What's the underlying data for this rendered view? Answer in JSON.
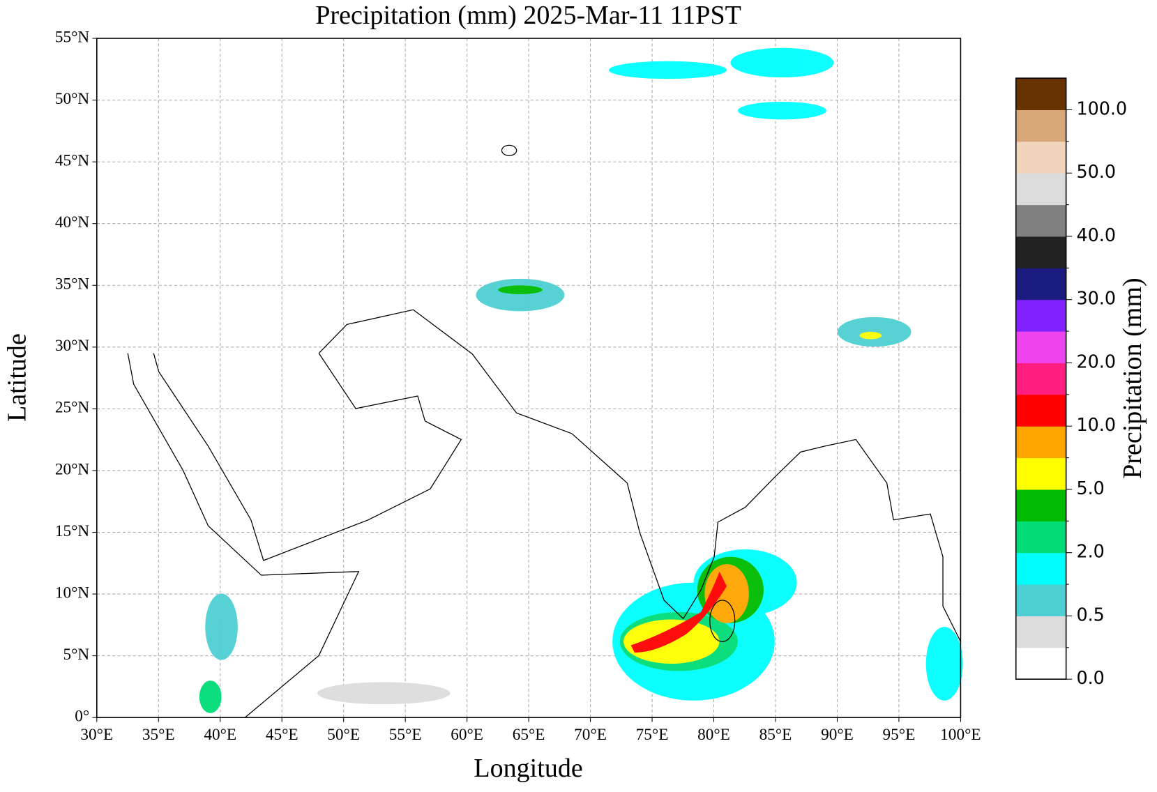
{
  "map": {
    "title": "Precipitation (mm)  2025-Mar-11 11PST",
    "x_axis": {
      "label": "Longitude",
      "lim": [
        30,
        100
      ],
      "ticks": [
        {
          "value": 30,
          "label": "30°E"
        },
        {
          "value": 35,
          "label": "35°E"
        },
        {
          "value": 40,
          "label": "40°E"
        },
        {
          "value": 45,
          "label": "45°E"
        },
        {
          "value": 50,
          "label": "50°E"
        },
        {
          "value": 55,
          "label": "55°E"
        },
        {
          "value": 60,
          "label": "60°E"
        },
        {
          "value": 65,
          "label": "65°E"
        },
        {
          "value": 70,
          "label": "70°E"
        },
        {
          "value": 75,
          "label": "75°E"
        },
        {
          "value": 80,
          "label": "80°E"
        },
        {
          "value": 85,
          "label": "85°E"
        },
        {
          "value": 90,
          "label": "90°E"
        },
        {
          "value": 95,
          "label": "95°E"
        },
        {
          "value": 100,
          "label": "100°E"
        }
      ]
    },
    "y_axis": {
      "label": "Latitude",
      "lim": [
        0,
        55
      ],
      "ticks": [
        {
          "value": 0,
          "label": "0°"
        },
        {
          "value": 5,
          "label": "5°N"
        },
        {
          "value": 10,
          "label": "10°N"
        },
        {
          "value": 15,
          "label": "15°N"
        },
        {
          "value": 20,
          "label": "20°N"
        },
        {
          "value": 25,
          "label": "25°N"
        },
        {
          "value": 30,
          "label": "30°N"
        },
        {
          "value": 35,
          "label": "35°N"
        },
        {
          "value": 40,
          "label": "40°N"
        },
        {
          "value": 45,
          "label": "45°N"
        },
        {
          "value": 50,
          "label": "50°N"
        },
        {
          "value": 55,
          "label": "55°N"
        }
      ]
    },
    "grid": true,
    "colorbar": {
      "label": "Precipitation (mm)",
      "colors": [
        "#ffffff",
        "#dcdcdc",
        "#4dcfd2",
        "#00ffff",
        "#00dd77",
        "#00bb00",
        "#ffff00",
        "#ffa500",
        "#ff0000",
        "#ff1d80",
        "#ee44ee",
        "#8022ff",
        "#1c1c80",
        "#222222",
        "#808080",
        "#dcdcdc",
        "#f0d5bc",
        "#d8a87a",
        "#663300"
      ],
      "ticks": [
        {
          "value": 0,
          "label": "0.0"
        },
        {
          "value": 0.5,
          "label": "0.5"
        },
        {
          "value": 2,
          "label": "2.0"
        },
        {
          "value": 5,
          "label": "5.0"
        },
        {
          "value": 10,
          "label": "10.0"
        },
        {
          "value": 20,
          "label": "20.0"
        },
        {
          "value": 30,
          "label": "30.0"
        },
        {
          "value": 40,
          "label": "40.0"
        },
        {
          "value": 50,
          "label": "50.0"
        },
        {
          "value": 100,
          "label": "100.0"
        }
      ]
    }
  }
}
